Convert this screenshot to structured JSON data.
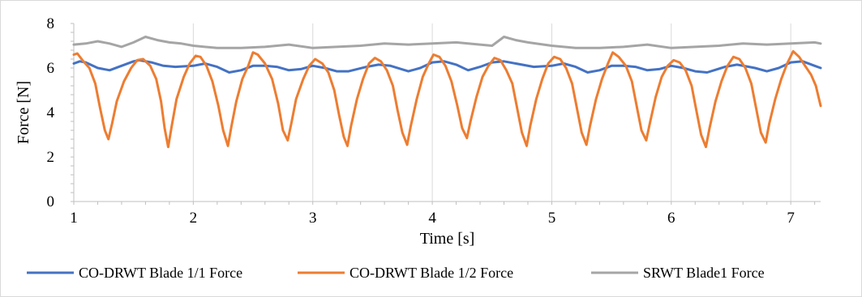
{
  "chart_data": {
    "type": "line",
    "title": "",
    "xlabel": "Time [s]",
    "ylabel": "Force [N]",
    "xlim": [
      1,
      7.25
    ],
    "ylim": [
      0,
      8
    ],
    "xticks": [
      1,
      2,
      3,
      4,
      5,
      6,
      7
    ],
    "yticks": [
      0,
      2,
      4,
      6,
      8
    ],
    "grid": "vertical",
    "legend_position": "bottom",
    "series": [
      {
        "name": "CO-DRWT Blade 1/1 Force",
        "color": "#4472C4",
        "points": [
          [
            1.0,
            6.2
          ],
          [
            1.05,
            6.3
          ],
          [
            1.1,
            6.25
          ],
          [
            1.2,
            6.0
          ],
          [
            1.3,
            5.9
          ],
          [
            1.4,
            6.1
          ],
          [
            1.5,
            6.3
          ],
          [
            1.55,
            6.35
          ],
          [
            1.65,
            6.25
          ],
          [
            1.75,
            6.1
          ],
          [
            1.85,
            6.05
          ],
          [
            2.0,
            6.1
          ],
          [
            2.1,
            6.2
          ],
          [
            2.2,
            6.05
          ],
          [
            2.3,
            5.8
          ],
          [
            2.4,
            5.9
          ],
          [
            2.5,
            6.1
          ],
          [
            2.6,
            6.1
          ],
          [
            2.7,
            6.05
          ],
          [
            2.8,
            5.9
          ],
          [
            2.9,
            5.95
          ],
          [
            3.0,
            6.1
          ],
          [
            3.1,
            6.0
          ],
          [
            3.2,
            5.85
          ],
          [
            3.3,
            5.85
          ],
          [
            3.45,
            6.05
          ],
          [
            3.55,
            6.15
          ],
          [
            3.65,
            6.1
          ],
          [
            3.8,
            5.85
          ],
          [
            3.9,
            6.0
          ],
          [
            4.0,
            6.25
          ],
          [
            4.1,
            6.3
          ],
          [
            4.2,
            6.15
          ],
          [
            4.3,
            5.9
          ],
          [
            4.4,
            6.05
          ],
          [
            4.5,
            6.25
          ],
          [
            4.6,
            6.3
          ],
          [
            4.75,
            6.15
          ],
          [
            4.85,
            6.05
          ],
          [
            5.0,
            6.1
          ],
          [
            5.1,
            6.2
          ],
          [
            5.2,
            6.05
          ],
          [
            5.3,
            5.8
          ],
          [
            5.4,
            5.9
          ],
          [
            5.5,
            6.1
          ],
          [
            5.6,
            6.1
          ],
          [
            5.7,
            6.05
          ],
          [
            5.8,
            5.9
          ],
          [
            5.9,
            5.95
          ],
          [
            6.0,
            6.1
          ],
          [
            6.1,
            6.0
          ],
          [
            6.2,
            5.85
          ],
          [
            6.3,
            5.8
          ],
          [
            6.45,
            6.05
          ],
          [
            6.55,
            6.15
          ],
          [
            6.7,
            6.0
          ],
          [
            6.8,
            5.85
          ],
          [
            6.9,
            6.0
          ],
          [
            7.0,
            6.25
          ],
          [
            7.1,
            6.3
          ],
          [
            7.2,
            6.1
          ],
          [
            7.25,
            6.0
          ]
        ]
      },
      {
        "name": "CO-DRWT Blade 1/2 Force",
        "color": "#ED7D31",
        "points": [
          [
            1.0,
            6.6
          ],
          [
            1.03,
            6.65
          ],
          [
            1.08,
            6.3
          ],
          [
            1.13,
            6.0
          ],
          [
            1.18,
            5.3
          ],
          [
            1.22,
            4.2
          ],
          [
            1.26,
            3.2
          ],
          [
            1.29,
            2.8
          ],
          [
            1.32,
            3.5
          ],
          [
            1.36,
            4.5
          ],
          [
            1.42,
            5.4
          ],
          [
            1.48,
            6.0
          ],
          [
            1.53,
            6.35
          ],
          [
            1.58,
            6.4
          ],
          [
            1.64,
            6.1
          ],
          [
            1.69,
            5.5
          ],
          [
            1.73,
            4.5
          ],
          [
            1.76,
            3.3
          ],
          [
            1.79,
            2.45
          ],
          [
            1.82,
            3.4
          ],
          [
            1.86,
            4.6
          ],
          [
            1.92,
            5.6
          ],
          [
            1.97,
            6.2
          ],
          [
            2.02,
            6.55
          ],
          [
            2.06,
            6.5
          ],
          [
            2.11,
            6.1
          ],
          [
            2.16,
            5.4
          ],
          [
            2.21,
            4.3
          ],
          [
            2.25,
            3.2
          ],
          [
            2.29,
            2.5
          ],
          [
            2.32,
            3.4
          ],
          [
            2.36,
            4.5
          ],
          [
            2.41,
            5.5
          ],
          [
            2.46,
            6.1
          ],
          [
            2.5,
            6.7
          ],
          [
            2.54,
            6.6
          ],
          [
            2.6,
            6.2
          ],
          [
            2.66,
            5.5
          ],
          [
            2.71,
            4.4
          ],
          [
            2.75,
            3.2
          ],
          [
            2.79,
            2.75
          ],
          [
            2.82,
            3.5
          ],
          [
            2.86,
            4.6
          ],
          [
            2.92,
            5.5
          ],
          [
            2.97,
            6.1
          ],
          [
            3.02,
            6.4
          ],
          [
            3.08,
            6.2
          ],
          [
            3.13,
            5.8
          ],
          [
            3.18,
            5.0
          ],
          [
            3.22,
            3.9
          ],
          [
            3.26,
            2.9
          ],
          [
            3.29,
            2.5
          ],
          [
            3.32,
            3.4
          ],
          [
            3.37,
            4.6
          ],
          [
            3.42,
            5.5
          ],
          [
            3.47,
            6.2
          ],
          [
            3.52,
            6.45
          ],
          [
            3.57,
            6.3
          ],
          [
            3.62,
            5.9
          ],
          [
            3.67,
            5.2
          ],
          [
            3.71,
            4.1
          ],
          [
            3.75,
            3.1
          ],
          [
            3.79,
            2.55
          ],
          [
            3.82,
            3.4
          ],
          [
            3.87,
            4.6
          ],
          [
            3.92,
            5.6
          ],
          [
            3.97,
            6.2
          ],
          [
            4.01,
            6.6
          ],
          [
            4.06,
            6.5
          ],
          [
            4.11,
            6.1
          ],
          [
            4.16,
            5.4
          ],
          [
            4.21,
            4.3
          ],
          [
            4.25,
            3.3
          ],
          [
            4.29,
            2.85
          ],
          [
            4.32,
            3.6
          ],
          [
            4.37,
            4.7
          ],
          [
            4.42,
            5.6
          ],
          [
            4.47,
            6.1
          ],
          [
            4.52,
            6.45
          ],
          [
            4.57,
            6.35
          ],
          [
            4.62,
            5.9
          ],
          [
            4.67,
            5.3
          ],
          [
            4.71,
            4.2
          ],
          [
            4.75,
            3.1
          ],
          [
            4.79,
            2.5
          ],
          [
            4.82,
            3.4
          ],
          [
            4.87,
            4.6
          ],
          [
            4.92,
            5.5
          ],
          [
            4.97,
            6.2
          ],
          [
            5.02,
            6.5
          ],
          [
            5.07,
            6.4
          ],
          [
            5.12,
            6.0
          ],
          [
            5.17,
            5.3
          ],
          [
            5.21,
            4.2
          ],
          [
            5.25,
            3.1
          ],
          [
            5.29,
            2.55
          ],
          [
            5.32,
            3.4
          ],
          [
            5.37,
            4.6
          ],
          [
            5.42,
            5.5
          ],
          [
            5.47,
            6.2
          ],
          [
            5.51,
            6.7
          ],
          [
            5.56,
            6.5
          ],
          [
            5.62,
            6.1
          ],
          [
            5.67,
            5.4
          ],
          [
            5.71,
            4.3
          ],
          [
            5.75,
            3.2
          ],
          [
            5.79,
            2.75
          ],
          [
            5.82,
            3.5
          ],
          [
            5.87,
            4.7
          ],
          [
            5.92,
            5.6
          ],
          [
            5.97,
            6.1
          ],
          [
            6.02,
            6.35
          ],
          [
            6.07,
            6.25
          ],
          [
            6.12,
            5.9
          ],
          [
            6.17,
            5.2
          ],
          [
            6.21,
            4.1
          ],
          [
            6.25,
            3.0
          ],
          [
            6.29,
            2.45
          ],
          [
            6.32,
            3.3
          ],
          [
            6.37,
            4.5
          ],
          [
            6.42,
            5.4
          ],
          [
            6.47,
            6.1
          ],
          [
            6.52,
            6.5
          ],
          [
            6.57,
            6.4
          ],
          [
            6.62,
            6.0
          ],
          [
            6.67,
            5.3
          ],
          [
            6.71,
            4.2
          ],
          [
            6.75,
            3.1
          ],
          [
            6.79,
            2.65
          ],
          [
            6.82,
            3.5
          ],
          [
            6.87,
            4.6
          ],
          [
            6.92,
            5.5
          ],
          [
            6.97,
            6.2
          ],
          [
            7.02,
            6.75
          ],
          [
            7.07,
            6.5
          ],
          [
            7.12,
            6.1
          ],
          [
            7.17,
            5.7
          ],
          [
            7.21,
            5.2
          ],
          [
            7.25,
            4.3
          ]
        ]
      },
      {
        "name": "SRWT Blade1 Force",
        "color": "#A5A5A5",
        "points": [
          [
            1.0,
            7.05
          ],
          [
            1.1,
            7.1
          ],
          [
            1.2,
            7.2
          ],
          [
            1.3,
            7.1
          ],
          [
            1.4,
            6.95
          ],
          [
            1.5,
            7.15
          ],
          [
            1.6,
            7.4
          ],
          [
            1.7,
            7.25
          ],
          [
            1.8,
            7.15
          ],
          [
            1.9,
            7.1
          ],
          [
            2.0,
            7.0
          ],
          [
            2.2,
            6.9
          ],
          [
            2.4,
            6.9
          ],
          [
            2.6,
            6.95
          ],
          [
            2.8,
            7.05
          ],
          [
            3.0,
            6.9
          ],
          [
            3.2,
            6.95
          ],
          [
            3.4,
            7.0
          ],
          [
            3.6,
            7.1
          ],
          [
            3.8,
            7.05
          ],
          [
            4.0,
            7.1
          ],
          [
            4.2,
            7.15
          ],
          [
            4.4,
            7.05
          ],
          [
            4.5,
            7.0
          ],
          [
            4.6,
            7.4
          ],
          [
            4.7,
            7.25
          ],
          [
            4.8,
            7.15
          ],
          [
            5.0,
            7.0
          ],
          [
            5.2,
            6.9
          ],
          [
            5.4,
            6.9
          ],
          [
            5.6,
            6.95
          ],
          [
            5.8,
            7.05
          ],
          [
            6.0,
            6.9
          ],
          [
            6.2,
            6.95
          ],
          [
            6.4,
            7.0
          ],
          [
            6.6,
            7.1
          ],
          [
            6.8,
            7.05
          ],
          [
            7.0,
            7.1
          ],
          [
            7.2,
            7.15
          ],
          [
            7.25,
            7.1
          ]
        ]
      }
    ]
  }
}
